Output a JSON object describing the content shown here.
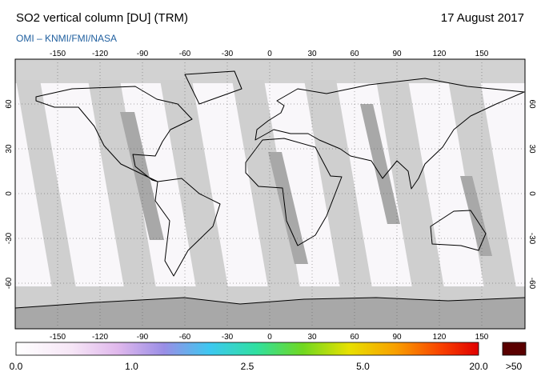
{
  "header": {
    "title": "SO2 vertical column [DU] (TRM)",
    "date": "17 August 2017",
    "credit": "OMI  –  KNMI/FMI/NASA"
  },
  "map": {
    "lon_ticks": [
      -150,
      -120,
      -90,
      -60,
      -30,
      0,
      30,
      60,
      90,
      120,
      150
    ],
    "lat_ticks": [
      60,
      30,
      0,
      -30,
      -60
    ]
  },
  "colorbar": {
    "labels": [
      "0.0",
      "1.0",
      "2.5",
      "5.0",
      "20.0"
    ],
    "overflow_label": ">50"
  }
}
